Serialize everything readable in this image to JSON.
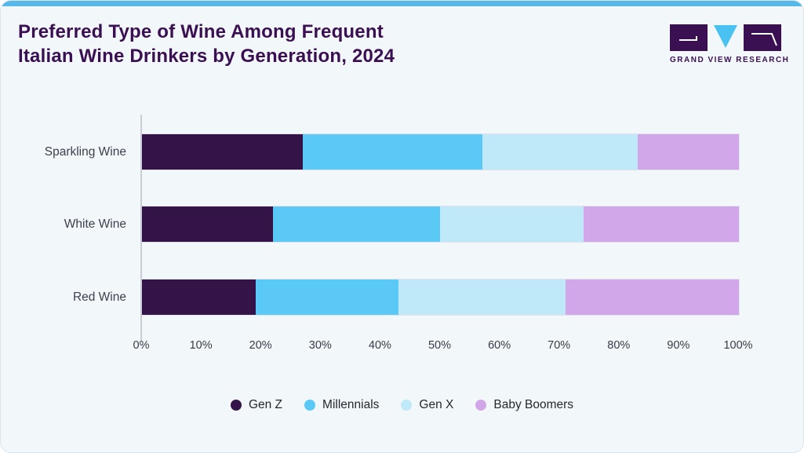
{
  "header": {
    "title": "Preferred Type of Wine Among Frequent\nItalian Wine Drinkers by Generation, 2024",
    "logo_text": "GRAND VIEW RESEARCH"
  },
  "colors": {
    "top_accent_bar": "#56b8e9",
    "title_text": "#3a1052",
    "card_background": "#f2f7fa",
    "axis_line": "#c9cdd5"
  },
  "chart_data": {
    "type": "bar",
    "orientation": "horizontal-stacked",
    "title": "Preferred Type of Wine Among Frequent Italian Wine Drinkers by Generation, 2024",
    "categories": [
      "Sparkling Wine",
      "White Wine",
      "Red Wine"
    ],
    "series": [
      {
        "name": "Gen Z",
        "color": "#341349",
        "values": [
          27,
          22,
          19
        ]
      },
      {
        "name": "Millennials",
        "color": "#5bc9f5",
        "values": [
          30,
          28,
          24
        ]
      },
      {
        "name": "Gen X",
        "color": "#bfe8f8",
        "values": [
          26,
          24,
          28
        ]
      },
      {
        "name": "Baby Boomers",
        "color": "#d2a7ea",
        "values": [
          17,
          26,
          29
        ]
      }
    ],
    "x_ticks": [
      "0%",
      "10%",
      "20%",
      "30%",
      "40%",
      "50%",
      "60%",
      "70%",
      "80%",
      "90%",
      "100%"
    ],
    "xlim": [
      0,
      100
    ],
    "unit": "%",
    "legend_position": "bottom",
    "grid": false
  }
}
